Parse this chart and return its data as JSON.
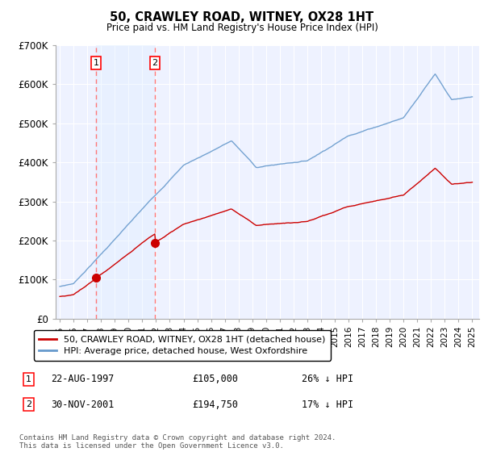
{
  "title": "50, CRAWLEY ROAD, WITNEY, OX28 1HT",
  "subtitle": "Price paid vs. HM Land Registry's House Price Index (HPI)",
  "ylim": [
    0,
    700000
  ],
  "yticks": [
    0,
    100000,
    200000,
    300000,
    400000,
    500000,
    600000,
    700000
  ],
  "ytick_labels": [
    "£0",
    "£100K",
    "£200K",
    "£300K",
    "£400K",
    "£500K",
    "£600K",
    "£700K"
  ],
  "legend_line1": "50, CRAWLEY ROAD, WITNEY, OX28 1HT (detached house)",
  "legend_line2": "HPI: Average price, detached house, West Oxfordshire",
  "sale1_date": "22-AUG-1997",
  "sale1_price": 105000,
  "sale1_year": 1997.64,
  "sale2_date": "30-NOV-2001",
  "sale2_price": 194750,
  "sale2_year": 2001.92,
  "sale1_pct": "26% ↓ HPI",
  "sale2_pct": "17% ↓ HPI",
  "footer": "Contains HM Land Registry data © Crown copyright and database right 2024.\nThis data is licensed under the Open Government Licence v3.0.",
  "hpi_color": "#6699cc",
  "price_color": "#cc0000",
  "dashed_color": "#ff7777",
  "marker_color": "#cc0000",
  "shade_color": "#ddeeff",
  "plot_bg": "#eef2ff",
  "xlim_left": 1994.7,
  "xlim_right": 2025.5
}
